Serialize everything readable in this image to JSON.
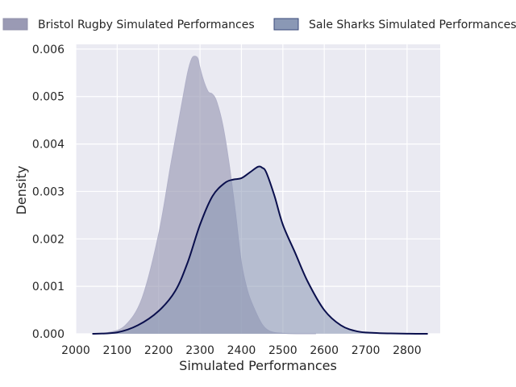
{
  "chart_data": {
    "type": "area",
    "title": "",
    "xlabel": "Simulated Performances",
    "ylabel": "Density",
    "xlim": [
      2000,
      2880
    ],
    "ylim": [
      0,
      0.0061
    ],
    "x_ticks": [
      2000,
      2100,
      2200,
      2300,
      2400,
      2500,
      2600,
      2700,
      2800
    ],
    "y_ticks": [
      0.0,
      0.001,
      0.002,
      0.003,
      0.004,
      0.005,
      0.006
    ],
    "y_tick_labels": [
      "0.000",
      "0.001",
      "0.002",
      "0.003",
      "0.004",
      "0.005",
      "0.006"
    ],
    "grid": true,
    "legend_position": "top",
    "series": [
      {
        "name": "Bristol Rugby Simulated Performances",
        "color": "#9a9ab4",
        "line_color": "#b0b0c8",
        "fill_opacity": 0.65,
        "x": [
          2040,
          2080,
          2120,
          2160,
          2200,
          2230,
          2255,
          2270,
          2280,
          2288,
          2295,
          2300,
          2310,
          2320,
          2330,
          2340,
          2355,
          2370,
          2385,
          2400,
          2415,
          2430,
          2450,
          2470,
          2500,
          2540,
          2580
        ],
        "values": [
          0.0,
          3e-05,
          0.00018,
          0.00075,
          0.0021,
          0.0036,
          0.0048,
          0.0055,
          0.0058,
          0.00585,
          0.0058,
          0.0056,
          0.0053,
          0.0051,
          0.00505,
          0.0049,
          0.0044,
          0.0036,
          0.0026,
          0.0015,
          0.0009,
          0.00055,
          0.0002,
          5e-05,
          1e-05,
          0.0,
          0.0
        ]
      },
      {
        "name": "Sale Sharks Simulated Performances",
        "color": "#8a98b5",
        "line_color": "#0a0f4d",
        "fill_opacity": 0.55,
        "x": [
          2040,
          2100,
          2150,
          2200,
          2240,
          2270,
          2300,
          2330,
          2360,
          2380,
          2400,
          2420,
          2440,
          2450,
          2460,
          2480,
          2500,
          2530,
          2560,
          2600,
          2640,
          2680,
          2720,
          2760,
          2800,
          2850
        ],
        "values": [
          0.0,
          3e-05,
          0.00018,
          0.00048,
          0.0009,
          0.0015,
          0.0023,
          0.0029,
          0.00318,
          0.00325,
          0.00328,
          0.0034,
          0.00352,
          0.0035,
          0.0034,
          0.0029,
          0.0023,
          0.0017,
          0.0011,
          0.0005,
          0.00018,
          5e-05,
          2e-05,
          8e-06,
          2e-06,
          0.0
        ]
      }
    ]
  }
}
